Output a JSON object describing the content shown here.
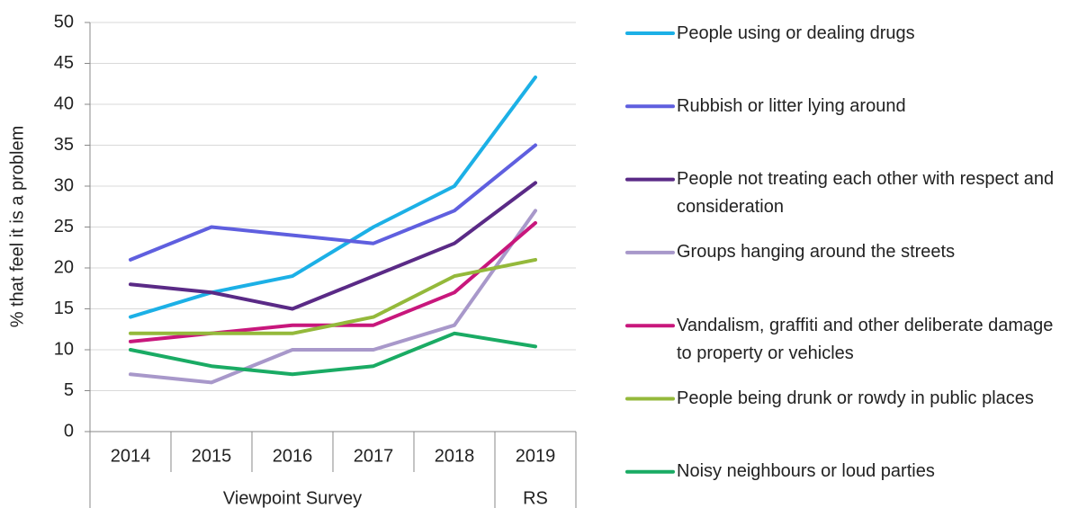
{
  "chart_data": {
    "type": "line",
    "y_label": "% that feel it is a problem",
    "categories": [
      "2014",
      "2015",
      "2016",
      "2017",
      "2018",
      "2019"
    ],
    "category_groups": [
      {
        "label": "Viewpoint Survey",
        "span": 5
      },
      {
        "label": "RS",
        "span": 1
      }
    ],
    "ylim": [
      0,
      50
    ],
    "yticks": [
      0,
      5,
      10,
      15,
      20,
      25,
      30,
      35,
      40,
      45,
      50
    ],
    "grid": true,
    "legend": "right",
    "series": [
      {
        "name": "People using or dealing drugs",
        "color": "#1cb0e6",
        "values": [
          14,
          17,
          19,
          25,
          30,
          43.3
        ]
      },
      {
        "name": "Rubbish or litter lying around",
        "color": "#5f5fdf",
        "values": [
          21,
          25,
          24,
          23,
          27,
          35
        ]
      },
      {
        "name": "People not treating each other with respect and consideration",
        "color": "#5a2a86",
        "values": [
          18,
          17,
          15,
          19,
          23,
          30.4
        ]
      },
      {
        "name": "Groups hanging around the streets",
        "color": "#a898ca",
        "values": [
          7,
          6,
          10,
          10,
          13,
          27
        ]
      },
      {
        "name": "Vandalism, graffiti and other deliberate damage to property or vehicles",
        "color": "#c8177c",
        "values": [
          11,
          12,
          13,
          13,
          17,
          25.5
        ]
      },
      {
        "name": "People being drunk or rowdy in public places",
        "color": "#94b93b",
        "values": [
          12,
          12,
          12,
          14,
          19,
          21
        ]
      },
      {
        "name": "Noisy neighbours or loud parties",
        "color": "#1aab64",
        "values": [
          10,
          8,
          7,
          8,
          12,
          10.4
        ]
      }
    ]
  }
}
